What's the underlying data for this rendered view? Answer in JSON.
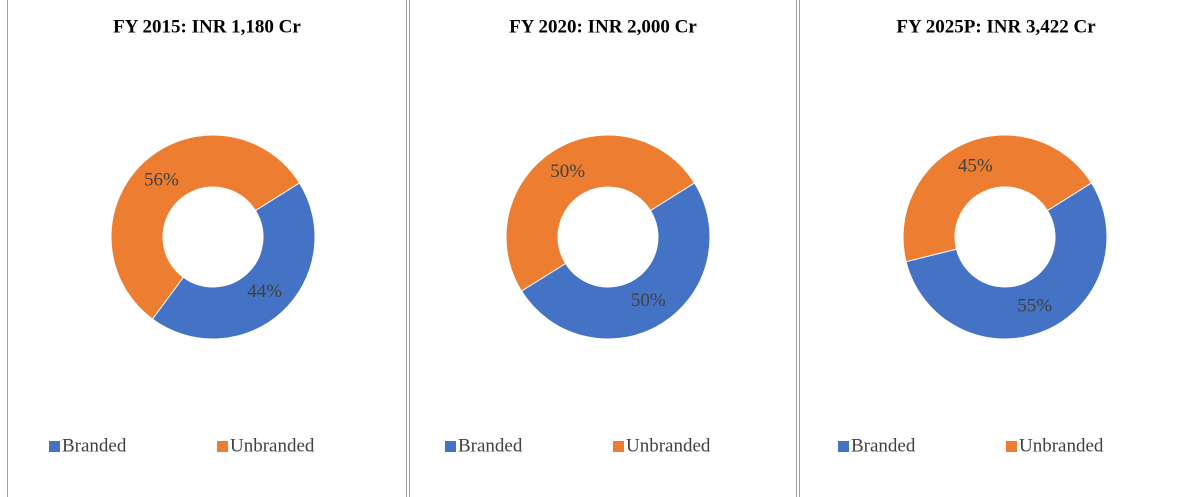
{
  "chart_data": [
    {
      "type": "pie",
      "title": "FY 2015: INR 1,180 Cr",
      "categories": [
        "Branded",
        "Unbranded"
      ],
      "values": [
        44,
        56
      ],
      "value_labels": [
        "44%",
        "56%"
      ],
      "colors": [
        "#4472c4",
        "#ed7d31"
      ],
      "donut": true,
      "legend": "bottom"
    },
    {
      "type": "pie",
      "title": "FY 2020: INR 2,000 Cr",
      "categories": [
        "Branded",
        "Unbranded"
      ],
      "values": [
        50,
        50
      ],
      "value_labels": [
        "50%",
        "50%"
      ],
      "colors": [
        "#4472c4",
        "#ed7d31"
      ],
      "donut": true,
      "legend": "bottom"
    },
    {
      "type": "pie",
      "title": "FY 2025P: INR 3,422 Cr",
      "categories": [
        "Branded",
        "Unbranded"
      ],
      "values": [
        55,
        45
      ],
      "value_labels": [
        "55%",
        "45%"
      ],
      "colors": [
        "#4472c4",
        "#ed7d31"
      ],
      "donut": true,
      "legend": "bottom"
    }
  ]
}
